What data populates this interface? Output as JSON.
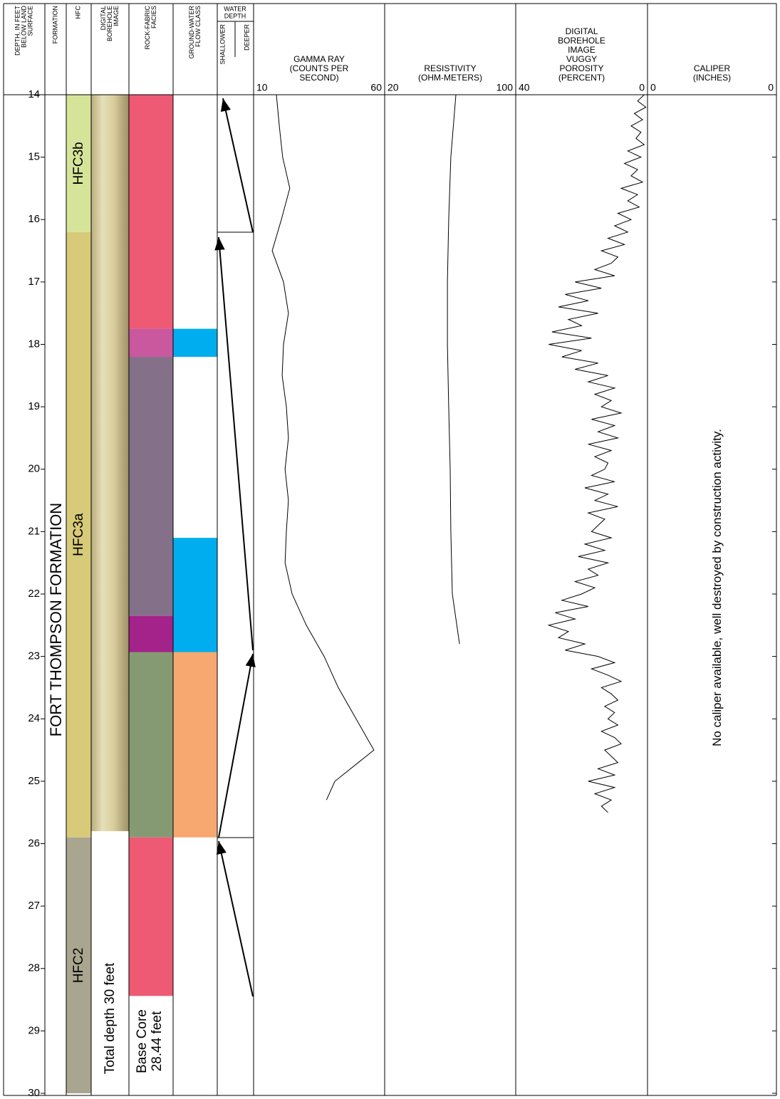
{
  "chart_data": {
    "type": "well-log",
    "depth": {
      "label": [
        "DEPTH, IN FEET",
        "BELOW LAND",
        "SURFACE"
      ],
      "ylim": [
        14,
        30
      ],
      "yticks": [
        14,
        15,
        16,
        17,
        18,
        19,
        20,
        21,
        22,
        23,
        24,
        25,
        26,
        27,
        28,
        29,
        30
      ]
    },
    "formation": {
      "label": "FORMATION",
      "name": "FORT THOMPSON FORMATION"
    },
    "hfc": {
      "label": "HFC",
      "intervals": [
        {
          "name": "HFC3b",
          "top": 14,
          "bottom": 16.2,
          "color": "#d6e49a"
        },
        {
          "name": "HFC3a",
          "top": 16.2,
          "bottom": 25.9,
          "color": "#d7ca78"
        },
        {
          "name": "HFC2",
          "top": 25.9,
          "bottom": 30,
          "color": "#a9a58e"
        }
      ]
    },
    "borehole_image": {
      "label": [
        "DIGITAL",
        "BOREHOLE",
        "IMAGE"
      ],
      "top": 14,
      "bottom": 25.8,
      "note": "Total depth 30 feet"
    },
    "rock_fabric": {
      "label": [
        "ROCK-FABRIC",
        "FACIES"
      ],
      "intervals": [
        {
          "top": 14,
          "bottom": 17.75,
          "color": "#ee5a73"
        },
        {
          "top": 17.75,
          "bottom": 18.2,
          "color": "#c9589e"
        },
        {
          "top": 18.2,
          "bottom": 22.35,
          "color": "#85708a"
        },
        {
          "top": 22.35,
          "bottom": 22.93,
          "color": "#a3238a"
        },
        {
          "top": 22.93,
          "bottom": 25.9,
          "color": "#859a72"
        },
        {
          "top": 25.9,
          "bottom": 28.44,
          "color": "#ee5a73"
        }
      ],
      "note": [
        "Base Core",
        "28.44 feet"
      ]
    },
    "flow_class": {
      "label": [
        "GROUND-WATER",
        "FLOW CLASS"
      ],
      "intervals": [
        {
          "top": 17.75,
          "bottom": 18.2,
          "color": "#00aeef"
        },
        {
          "top": 21.1,
          "bottom": 22.93,
          "color": "#00aeef"
        },
        {
          "top": 22.93,
          "bottom": 25.9,
          "color": "#f7a870"
        }
      ]
    },
    "water_depth": {
      "label": [
        "WATER",
        "DEPTH"
      ],
      "left": "SHALLOWER",
      "right": "DEEPER"
    },
    "tracks": [
      {
        "label": [
          "GAMMA RAY",
          "(COUNTS PER",
          "SECOND)"
        ],
        "xlim": [
          10,
          60
        ],
        "xticks": [
          10,
          60
        ],
        "color": "#000000",
        "depth": [
          14,
          14.5,
          15,
          15.5,
          16,
          16.5,
          17,
          17.5,
          18,
          18.5,
          19,
          19.5,
          20,
          20.5,
          21,
          21.5,
          22,
          22.5,
          23,
          23.5,
          24,
          24.5,
          25,
          25.3
        ],
        "values": [
          18.7,
          19.8,
          21.1,
          23.8,
          20.6,
          17.1,
          21.4,
          23.3,
          21.4,
          20.9,
          22.5,
          23.3,
          22,
          23.3,
          22.5,
          22,
          24.7,
          30.1,
          36.9,
          42.3,
          49.1,
          55.9,
          41,
          37.8
        ]
      },
      {
        "label": [
          "RESISTIVITY",
          "(OHM-METERS)"
        ],
        "xlim": [
          20,
          100
        ],
        "xticks": [
          20,
          100
        ],
        "color": "#000000",
        "depth": [
          14,
          15,
          16,
          17,
          18,
          19,
          20,
          21,
          22,
          22.8
        ],
        "values": [
          63.5,
          60.4,
          59.1,
          58.3,
          58.3,
          59.1,
          60,
          60.4,
          61.3,
          65.7
        ]
      },
      {
        "label": [
          "DIGITAL",
          "BOREHOLE",
          "IMAGE",
          "VUGGY",
          "POROSITY",
          "(PERCENT)"
        ],
        "xlim": [
          40,
          0
        ],
        "xticks": [
          40,
          0
        ],
        "color": "#000000",
        "depth": [
          14,
          14.1,
          14.2,
          14.3,
          14.4,
          14.5,
          14.6,
          14.7,
          14.8,
          14.9,
          15,
          15.1,
          15.2,
          15.3,
          15.4,
          15.5,
          15.6,
          15.7,
          15.8,
          15.9,
          16,
          16.1,
          16.2,
          16.3,
          16.4,
          16.5,
          16.6,
          16.7,
          16.8,
          16.9,
          17,
          17.1,
          17.2,
          17.3,
          17.4,
          17.5,
          17.6,
          17.7,
          17.8,
          17.9,
          18,
          18.1,
          18.2,
          18.3,
          18.4,
          18.5,
          18.6,
          18.7,
          18.8,
          18.9,
          19,
          19.1,
          19.2,
          19.3,
          19.4,
          19.5,
          19.6,
          19.7,
          19.8,
          19.9,
          20,
          20.1,
          20.2,
          20.3,
          20.4,
          20.5,
          20.6,
          20.7,
          20.8,
          20.9,
          21,
          21.1,
          21.2,
          21.3,
          21.4,
          21.5,
          21.6,
          21.7,
          21.8,
          21.9,
          22,
          22.1,
          22.2,
          22.3,
          22.4,
          22.5,
          22.6,
          22.7,
          22.8,
          22.9,
          23,
          23.1,
          23.2,
          23.3,
          23.4,
          23.5,
          23.6,
          23.7,
          23.8,
          23.9,
          24,
          24.1,
          24.2,
          24.3,
          24.4,
          24.5,
          24.6,
          24.7,
          24.8,
          24.9,
          25,
          25.1,
          25.2,
          25.3,
          25.4,
          25.5
        ],
        "values": [
          1,
          3,
          0.5,
          4,
          1.5,
          5,
          2,
          3.5,
          1,
          6,
          2,
          7,
          3,
          5,
          1.5,
          8,
          3,
          6,
          2.5,
          9,
          5,
          10,
          6,
          12,
          7,
          14,
          9,
          11,
          16,
          10,
          22,
          14,
          25,
          18,
          27,
          15,
          24,
          20,
          29,
          17,
          30,
          20,
          26,
          15,
          22,
          12,
          18,
          10,
          16,
          11,
          14,
          8,
          17,
          10,
          15,
          9,
          18,
          11,
          16,
          12,
          13,
          17,
          10,
          19,
          12,
          16,
          9,
          18,
          13,
          15,
          17,
          11,
          19,
          13,
          21,
          12,
          18,
          15,
          22,
          16,
          20,
          26,
          18,
          28,
          22,
          30,
          24,
          27,
          19,
          25,
          15,
          10,
          17,
          12,
          8,
          14,
          11,
          9,
          13,
          10,
          12,
          9,
          14,
          10,
          8,
          13,
          11,
          9,
          15,
          10,
          18,
          10,
          16,
          11,
          14,
          12
        ]
      },
      {
        "label": [
          "CALIPER",
          "(INCHES)"
        ],
        "xticks": [
          0,
          0
        ],
        "note": "No caliper available, well destroyed by construction activity."
      }
    ]
  }
}
